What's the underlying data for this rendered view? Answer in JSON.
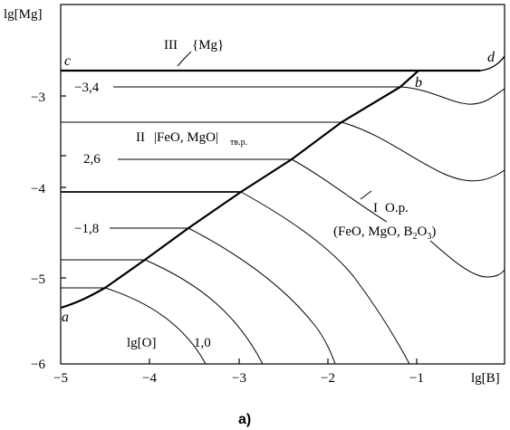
{
  "axes": {
    "y_title": "lg[Mg]",
    "x_title": "lg[B]",
    "x_ticks": [
      {
        "value": -5,
        "label": "−5"
      },
      {
        "value": -4,
        "label": "−4"
      },
      {
        "value": -3,
        "label": "−3"
      },
      {
        "value": -2,
        "label": "−2"
      },
      {
        "value": -1,
        "label": "−1"
      }
    ],
    "y_ticks": [
      {
        "value": -3,
        "label": "−3"
      },
      {
        "value": -4,
        "label": "−4"
      },
      {
        "value": -5,
        "label": "−5"
      },
      {
        "value": -6,
        "label": "−6"
      }
    ],
    "x_range": [
      -5,
      0
    ],
    "y_range": [
      -6,
      -2.0
    ]
  },
  "point_labels": {
    "a": "a",
    "b": "b",
    "c": "c",
    "d": "d"
  },
  "regions": {
    "III_prefix": "III",
    "III_phase": "{Mg}",
    "II_prefix": "II",
    "II_phase": "|FeO, MgO|",
    "II_subscript": "тв.р.",
    "I_prefix": "I",
    "I_phase": "О.р.",
    "I_comp_open": "(FeO, MgO, B",
    "I_comp_sub2": "2",
    "I_comp_mid": "O",
    "I_comp_sub3": "3",
    "I_comp_close": ")"
  },
  "isoline_labels": {
    "title": "lg[O]",
    "values": [
      "−3,4",
      "2,6",
      "−1,8",
      "1,0"
    ]
  },
  "caption": "а)"
}
